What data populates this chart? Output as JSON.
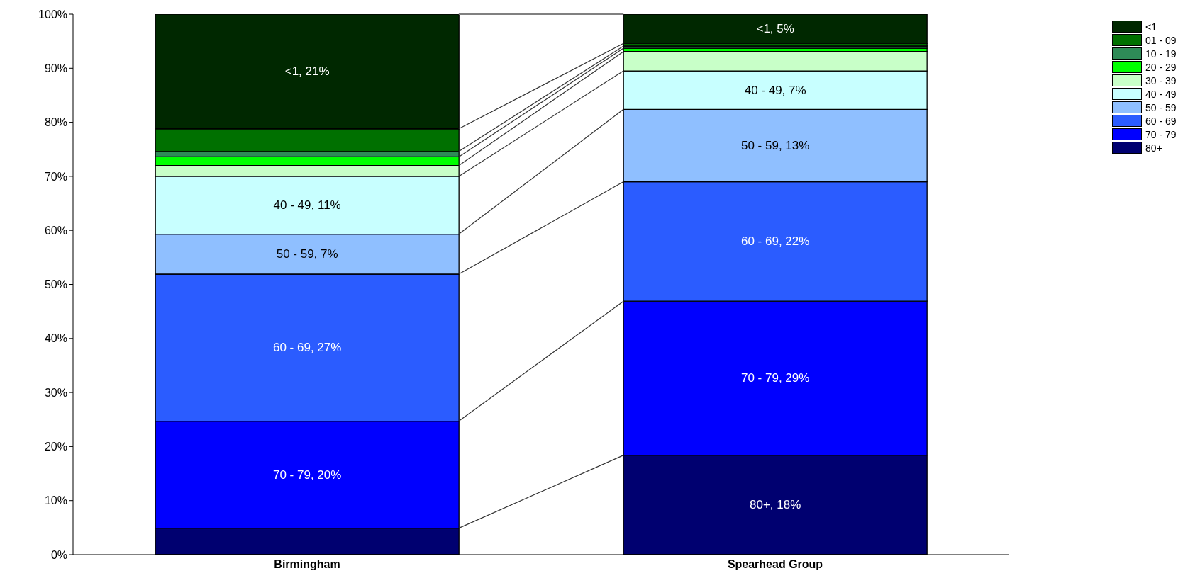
{
  "chart_data": {
    "type": "bar",
    "stacked": true,
    "categories": [
      "Birmingham",
      "Spearhead Group"
    ],
    "series": [
      {
        "name": "80+",
        "color": "#000070",
        "values": [
          4.9,
          18.4
        ],
        "value_labels": [
          null,
          "80+, 18%"
        ]
      },
      {
        "name": "70 - 79",
        "color": "#0000ff",
        "values": [
          19.8,
          28.5
        ],
        "value_labels": [
          "70 - 79, 20%",
          "70 - 79, 29%"
        ]
      },
      {
        "name": "60 - 69",
        "color": "#2b5cff",
        "values": [
          27.2,
          22.1
        ],
        "value_labels": [
          "60 - 69, 27%",
          "60 - 69, 22%"
        ]
      },
      {
        "name": "50 - 59",
        "color": "#8fbfff",
        "values": [
          7.4,
          13.4
        ],
        "value_labels": [
          "50 - 59, 7%",
          "50 - 59, 13%"
        ]
      },
      {
        "name": "40 - 49",
        "color": "#c8ffff",
        "values": [
          10.7,
          7.1
        ],
        "value_labels": [
          "40 - 49, 11%",
          "40 - 49, 7%"
        ]
      },
      {
        "name": "30 - 39",
        "color": "#c8ffc8",
        "values": [
          2.0,
          3.6
        ],
        "value_labels": [
          null,
          null
        ]
      },
      {
        "name": "20 - 29",
        "color": "#00ff00",
        "values": [
          1.6,
          0.6
        ],
        "value_labels": [
          null,
          null
        ]
      },
      {
        "name": "10 - 19",
        "color": "#2e8b57",
        "values": [
          1.0,
          0.4
        ],
        "value_labels": [
          null,
          null
        ]
      },
      {
        "name": "01 - 09",
        "color": "#007000",
        "values": [
          4.2,
          0.5
        ],
        "value_labels": [
          null,
          null
        ]
      },
      {
        "name": "<1",
        "color": "#002800",
        "values": [
          21.2,
          5.4
        ],
        "value_labels": [
          "<1, 21%",
          "<1, 5%"
        ]
      }
    ],
    "ylim": [
      0,
      100
    ],
    "yticks": [
      {
        "value": 0,
        "label": "0%"
      },
      {
        "value": 10,
        "label": "10%"
      },
      {
        "value": 20,
        "label": "20%"
      },
      {
        "value": 30,
        "label": "30%"
      },
      {
        "value": 40,
        "label": "40%"
      },
      {
        "value": 50,
        "label": "50%"
      },
      {
        "value": 60,
        "label": "60%"
      },
      {
        "value": 70,
        "label": "70%"
      },
      {
        "value": 80,
        "label": "80%"
      },
      {
        "value": 90,
        "label": "90%"
      },
      {
        "value": 100,
        "label": "100%"
      }
    ],
    "grid": false,
    "legend": "top right"
  }
}
